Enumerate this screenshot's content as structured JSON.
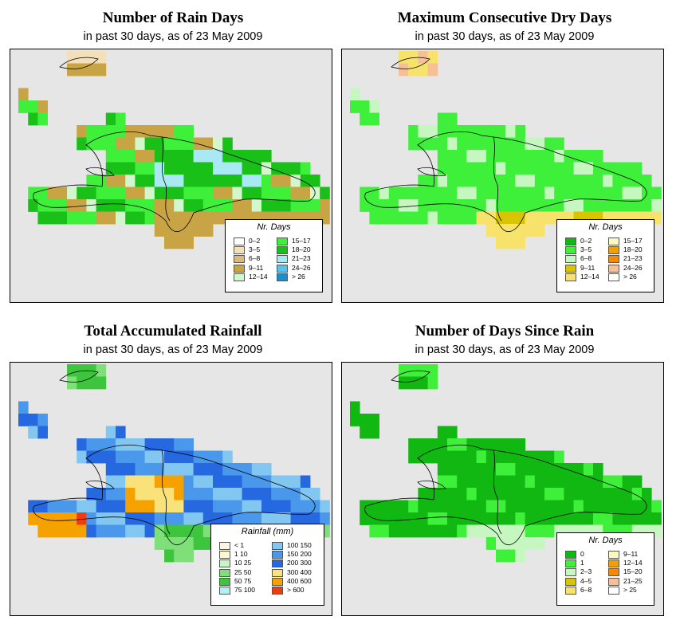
{
  "panels": [
    {
      "id": "rain-days",
      "title": "Number of Rain Days",
      "subtitle": "in past 30 days, as of  23 May 2009",
      "legend": {
        "title": "Nr. Days",
        "items": [
          {
            "label": "0–2",
            "color": "#ffffff"
          },
          {
            "label": "3–5",
            "color": "#f3dfb8"
          },
          {
            "label": "6–8",
            "color": "#d9b97e"
          },
          {
            "label": "9–11",
            "color": "#c9a445"
          },
          {
            "label": "12–14",
            "color": "#d2f7cd"
          },
          {
            "label": "15–17",
            "color": "#3ff03a"
          },
          {
            "label": "18–20",
            "color": "#18c018"
          },
          {
            "label": "21–23",
            "color": "#a9e9f3"
          },
          {
            "label": "24–26",
            "color": "#57c2ec"
          },
          {
            "label": "> 26",
            "color": "#1a8fd0"
          }
        ]
      }
    },
    {
      "id": "dry-days",
      "title": "Maximum Consecutive Dry Days",
      "subtitle": "in past 30 days, as of  23 May 2009",
      "legend": {
        "title": "Nr. Days",
        "items": [
          {
            "label": "0–2",
            "color": "#12b812"
          },
          {
            "label": "3–5",
            "color": "#3ff03a"
          },
          {
            "label": "6–8",
            "color": "#c7f7c1"
          },
          {
            "label": "9–11",
            "color": "#d8c400"
          },
          {
            "label": "12–14",
            "color": "#f7e36b"
          },
          {
            "label": "15–17",
            "color": "#fcf9c0"
          },
          {
            "label": "18–20",
            "color": "#f0a000"
          },
          {
            "label": "21–23",
            "color": "#f58a00"
          },
          {
            "label": "24–26",
            "color": "#f7bf95"
          },
          {
            "label": "> 26",
            "color": "#ffffff"
          }
        ]
      }
    },
    {
      "id": "rainfall",
      "title": "Total Accumulated Rainfall",
      "subtitle": "in past 30 days, as of  23 May 2009",
      "legend": {
        "title": "Rainfall (mm)",
        "items": [
          {
            "label": "< 1",
            "color": "#fff4e0"
          },
          {
            "label": "1   10",
            "color": "#fbf7cf"
          },
          {
            "label": "10   25",
            "color": "#c9f5c2"
          },
          {
            "label": "25   50",
            "color": "#7fe07a"
          },
          {
            "label": "50   75",
            "color": "#3dc63d"
          },
          {
            "label": "75   100",
            "color": "#b3f0f5"
          },
          {
            "label": "100   150",
            "color": "#82c7f2"
          },
          {
            "label": "150   200",
            "color": "#4a98ec"
          },
          {
            "label": "200   300",
            "color": "#2568e0"
          },
          {
            "label": "300   400",
            "color": "#fae27a"
          },
          {
            "label": "400   600",
            "color": "#f5a100"
          },
          {
            "label": "> 600",
            "color": "#f03a10"
          }
        ]
      }
    },
    {
      "id": "days-since-rain",
      "title": "Number of Days Since Rain",
      "subtitle": "in past 30 days, as of  23 May 2009",
      "legend": {
        "title": "Nr. Days",
        "items": [
          {
            "label": "0",
            "color": "#12b812"
          },
          {
            "label": "1",
            "color": "#3ff03a"
          },
          {
            "label": "2–3",
            "color": "#c7f7c1"
          },
          {
            "label": "4–5",
            "color": "#d8c400"
          },
          {
            "label": "6–8",
            "color": "#f7e36b"
          },
          {
            "label": "9–11",
            "color": "#fcf9c0"
          },
          {
            "label": "12–14",
            "color": "#f0a000"
          },
          {
            "label": "15–20",
            "color": "#f58a00"
          },
          {
            "label": "21–25",
            "color": "#f7bf95"
          },
          {
            "label": "> 25",
            "color": "#ffffff"
          }
        ]
      }
    }
  ]
}
